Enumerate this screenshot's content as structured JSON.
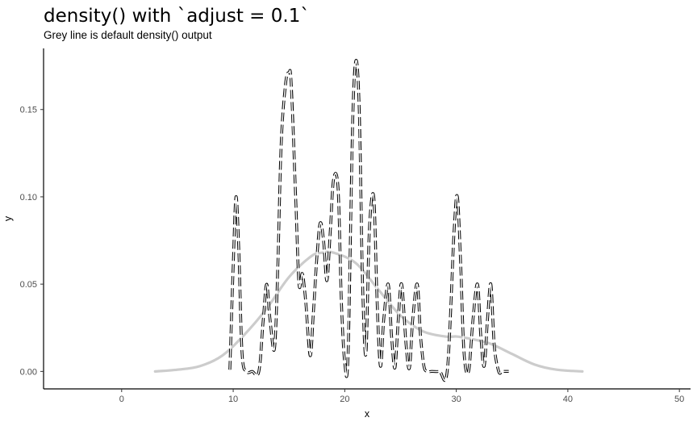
{
  "chart_data": {
    "type": "line",
    "title": "density() with `adjust = 0.1`",
    "subtitle": "Grey line is default density() output",
    "xlabel": "x",
    "ylabel": "y",
    "xlim": [
      -7,
      51
    ],
    "ylim": [
      -0.01,
      0.185
    ],
    "x_ticks": [
      0,
      10,
      20,
      30,
      40,
      50
    ],
    "x_tick_labels": [
      "0",
      "10",
      "20",
      "30",
      "40",
      "50"
    ],
    "y_ticks": [
      0.0,
      0.05,
      0.1,
      0.15
    ],
    "y_tick_labels": [
      "0.00",
      "0.05",
      "0.10",
      "0.15"
    ],
    "grid": false,
    "colors": {
      "default_line": "#cccccc",
      "adjusted_line": "#000000",
      "axis": "#000000",
      "tick_text": "#4d4d4d"
    },
    "series": [
      {
        "line_style": "solid-grey",
        "x": [
          3.0,
          5.0,
          7.0,
          9.0,
          11.0,
          13.0,
          15.0,
          17.0,
          18.0,
          19.0,
          21.0,
          23.0,
          25.0,
          27.0,
          29.0,
          30.0,
          31.0,
          33.0,
          35.0,
          37.0,
          39.0,
          41.3
        ],
        "y": [
          0.0,
          0.001,
          0.003,
          0.009,
          0.021,
          0.036,
          0.054,
          0.066,
          0.068,
          0.068,
          0.062,
          0.047,
          0.032,
          0.023,
          0.02,
          0.02,
          0.019,
          0.016,
          0.01,
          0.004,
          0.001,
          0.0
        ]
      },
      {
        "line_style": "dashed-outline",
        "x": [
          9.7,
          10.0,
          10.25,
          10.5,
          10.8,
          11.2,
          11.7,
          12.3,
          12.7,
          13.0,
          13.3,
          13.7,
          14.0,
          14.3,
          14.7,
          15.0,
          15.2,
          15.6,
          15.9,
          16.2,
          16.5,
          16.9,
          17.2,
          17.5,
          17.8,
          18.1,
          18.4,
          18.7,
          19.0,
          19.4,
          19.7,
          20.0,
          20.3,
          20.7,
          21.0,
          21.3,
          21.6,
          21.9,
          22.2,
          22.6,
          22.9,
          23.2,
          23.5,
          23.9,
          24.2,
          24.5,
          24.8,
          25.1,
          25.5,
          25.8,
          26.1,
          26.5,
          26.8,
          27.1,
          27.4,
          27.8,
          28.5,
          29.2,
          29.8,
          30.1,
          30.4,
          30.7,
          31.1,
          31.5,
          31.9,
          32.2,
          32.5,
          32.8,
          33.1,
          33.4,
          33.8,
          34.1,
          34.4,
          34.7
        ],
        "y": [
          0.001,
          0.06,
          0.1,
          0.07,
          0.01,
          0.0,
          0.0,
          0.0,
          0.03,
          0.05,
          0.03,
          0.013,
          0.06,
          0.13,
          0.165,
          0.171,
          0.165,
          0.1,
          0.05,
          0.056,
          0.04,
          0.009,
          0.035,
          0.065,
          0.085,
          0.075,
          0.052,
          0.08,
          0.11,
          0.105,
          0.04,
          0.005,
          0.01,
          0.14,
          0.178,
          0.15,
          0.05,
          0.01,
          0.08,
          0.1,
          0.04,
          0.003,
          0.03,
          0.05,
          0.02,
          0.002,
          0.03,
          0.05,
          0.015,
          0.002,
          0.03,
          0.05,
          0.02,
          0.003,
          0.0,
          0.0,
          0.0,
          0.001,
          0.08,
          0.1,
          0.06,
          0.01,
          0.0,
          0.03,
          0.05,
          0.02,
          0.003,
          0.03,
          0.05,
          0.015,
          0.0,
          0.0,
          0.0,
          0.0
        ]
      }
    ]
  }
}
